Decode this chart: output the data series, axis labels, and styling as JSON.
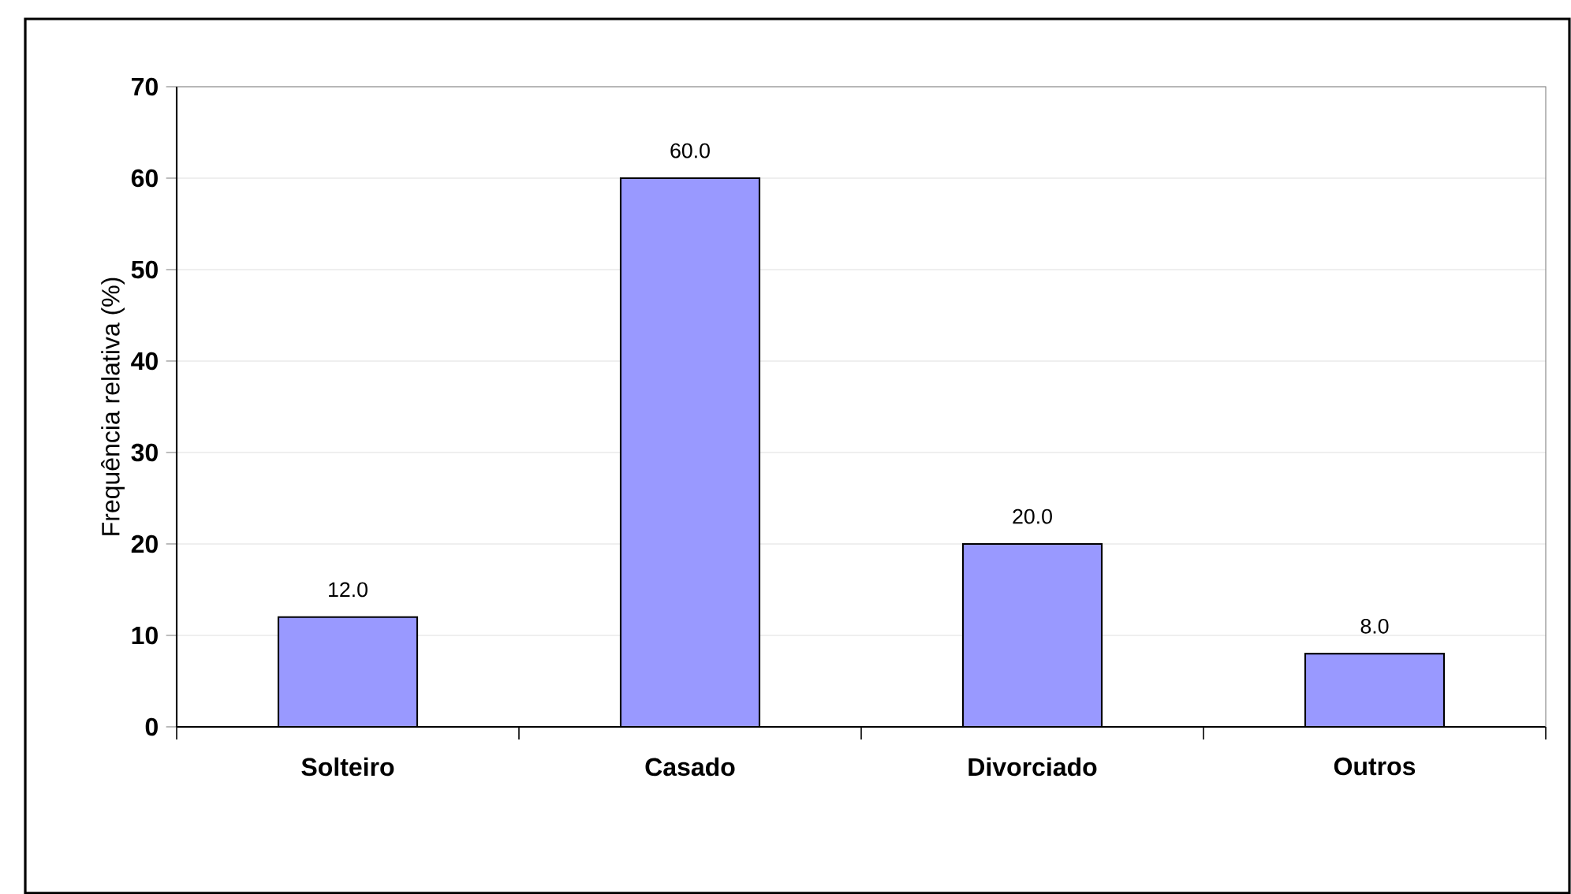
{
  "chart_data": {
    "type": "bar",
    "ylabel": "Frequência relativa (%)",
    "categories": [
      "Solteiro",
      "Casado",
      "Divorciado",
      "Outros"
    ],
    "values": [
      12.0,
      60.0,
      20.0,
      8.0
    ],
    "value_labels": [
      "12.0",
      "60.0",
      "20.0",
      "8.0"
    ],
    "color": "#9999ff",
    "ylim": [
      0,
      70
    ],
    "yticks": [
      0,
      10,
      20,
      30,
      40,
      50,
      60,
      70
    ],
    "grid": "y"
  }
}
